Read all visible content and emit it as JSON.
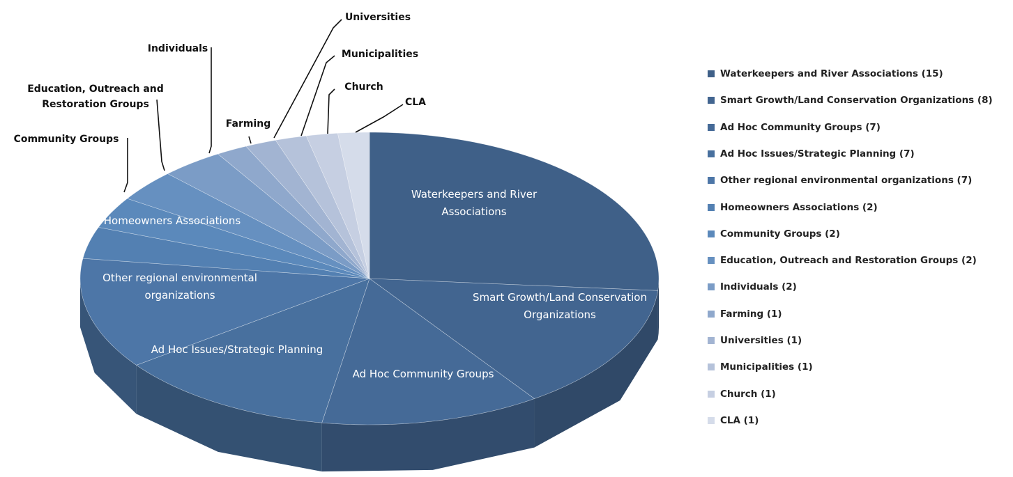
{
  "chart_data": {
    "type": "pie",
    "categories": [
      "Waterkeepers and River Associations",
      "Smart Growth/Land Conservation Organizations",
      "Ad Hoc Community Groups",
      "Ad Hoc Issues/Strategic Planning",
      "Other regional environmental organizations",
      "Homeowners Associations",
      "Community Groups",
      "Education, Outreach and Restoration Groups",
      "Individuals",
      "Farming",
      "Universities",
      "Municipalities",
      "Church",
      "CLA"
    ],
    "values": [
      15,
      8,
      7,
      7,
      7,
      2,
      2,
      2,
      2,
      1,
      1,
      1,
      1,
      1
    ],
    "legend_labels": [
      "Waterkeepers and River Associations (15)",
      "Smart Growth/Land Conservation Organizations (8)",
      "Ad Hoc Community Groups (7)",
      "Ad Hoc Issues/Strategic Planning (7)",
      "Other regional environmental organizations (7)",
      "Homeowners Associations (2)",
      "Community Groups (2)",
      "Education, Outreach and Restoration Groups (2)",
      "Individuals (2)",
      "Farming (1)",
      "Universities (1)",
      "Municipalities (1)",
      "Church (1)",
      "CLA (1)"
    ],
    "colors": [
      "#3f6088",
      "#426590",
      "#456a97",
      "#48709e",
      "#4d76a7",
      "#5380b2",
      "#5b89bb",
      "#6690c0",
      "#7b9cc6",
      "#8fa8cc",
      "#a2b4d2",
      "#b5c2da",
      "#c6cfe2",
      "#d5dcea"
    ],
    "legend": "right"
  }
}
